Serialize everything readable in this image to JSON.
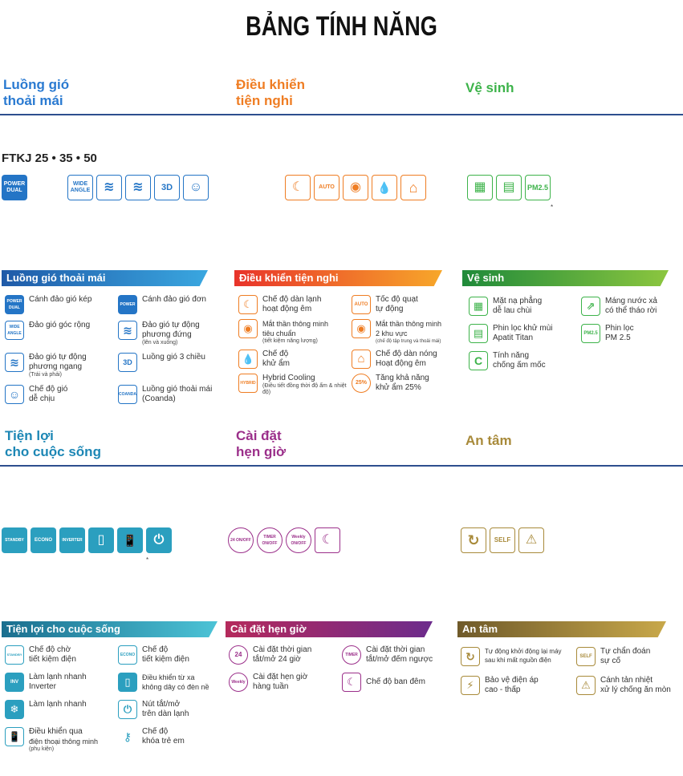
{
  "title": "BẢNG TÍNH NĂNG",
  "categories_top": {
    "air_l1": "Luồng gió",
    "air_l2": "thoải mái",
    "ctrl_l1": "Điều khiển",
    "ctrl_l2": "tiện nghi",
    "clean": "Vệ sinh"
  },
  "model": "FTKJ 25 • 35 • 50",
  "icons_air": [
    {
      "name": "power-dual-icon",
      "text": "POWER DUAL"
    },
    {
      "name": "wide-angle-icon",
      "text": "WIDE ANGLE"
    },
    {
      "name": "vertical-swing-icon",
      "text": "≋"
    },
    {
      "name": "horizontal-swing-icon",
      "text": "≋"
    },
    {
      "name": "3d-airflow-icon",
      "text": "3D"
    },
    {
      "name": "comfort-mode-icon",
      "text": "☺"
    }
  ],
  "icons_ctrl": [
    {
      "name": "cooling-night-icon",
      "text": "☾"
    },
    {
      "name": "fan-auto-icon",
      "text": "AUTO"
    },
    {
      "name": "intelligent-eye-icon",
      "text": "◉"
    },
    {
      "name": "dry-icon",
      "text": "💧"
    },
    {
      "name": "heat-home-icon",
      "text": "⌂"
    }
  ],
  "icons_clean": [
    {
      "name": "flat-panel-icon",
      "text": "▦"
    },
    {
      "name": "titan-filter-icon",
      "text": "▤"
    },
    {
      "name": "pm25-filter-icon",
      "text": "PM2.5"
    }
  ],
  "star": "*",
  "banners": {
    "air": "Luồng gió thoải mái",
    "ctrl": "Điều khiển tiện nghi",
    "clean": "Vệ sinh",
    "life": "Tiện lợi cho cuộc sống",
    "timer": "Cài đặt hẹn giờ",
    "safe": "An tâm"
  },
  "air_features": [
    {
      "icon": "POWER DUAL",
      "name": "power-dual-icon",
      "l1": "Cánh đảo gió kép",
      "l2": "",
      "sub": ""
    },
    {
      "icon": "POWER",
      "name": "power-icon",
      "l1": "Cánh đảo gió đơn",
      "l2": "",
      "sub": ""
    },
    {
      "icon": "WIDE ANGLE",
      "name": "wide-angle-icon",
      "l1": "Đảo gió góc rộng",
      "l2": "",
      "sub": ""
    },
    {
      "icon": "≋",
      "name": "vertical-swing-icon",
      "l1": "Đảo gió tự động",
      "l2": "phương đứng",
      "sub": "(lên và xuống)"
    },
    {
      "icon": "≋",
      "name": "horizontal-swing-icon",
      "l1": "Đảo gió tự động",
      "l2": "phương ngang",
      "sub": "(Trái và phải)"
    },
    {
      "icon": "3D",
      "name": "3d-airflow-icon",
      "l1": "Luồng gió 3 chiều",
      "l2": "",
      "sub": ""
    },
    {
      "icon": "☺",
      "name": "comfort-mode-icon",
      "l1": "Chế độ gió",
      "l2": "dễ chịu",
      "sub": ""
    },
    {
      "icon": "COANDA",
      "name": "coanda-icon",
      "l1": "Luồng gió thoải mái",
      "l2": "(Coanda)",
      "sub": ""
    }
  ],
  "ctrl_features": [
    {
      "icon": "☾",
      "name": "cooling-night-icon",
      "l1": "Chế độ dàn lạnh",
      "l2": "hoạt động êm",
      "sub": ""
    },
    {
      "icon": "AUTO",
      "name": "fan-auto-icon",
      "l1": "Tốc độ quạt",
      "l2": "tự động",
      "sub": ""
    },
    {
      "icon": "◉",
      "name": "intelligent-eye-icon",
      "l1": "Mắt thần thông minh",
      "l2": "tiêu chuẩn",
      "sub": "(tiết kiệm năng lượng)"
    },
    {
      "icon": "◉",
      "name": "intelligent-eye-2-icon",
      "l1": "Mắt thần thông minh",
      "l2": "2 khu vực",
      "sub": "(chế độ tập trung và thoải mái)"
    },
    {
      "icon": "💧",
      "name": "dry-icon",
      "l1": "Chế độ",
      "l2": "khử ẩm",
      "sub": ""
    },
    {
      "icon": "⌂",
      "name": "heat-home-icon",
      "l1": "Chế độ dàn nóng",
      "l2": "Hoạt động êm",
      "sub": ""
    },
    {
      "icon": "HYBRID",
      "name": "hybrid-icon",
      "l1": "Hybrid Cooling",
      "l2": "",
      "sub": "(Điều tiết đồng thời độ ẩm & nhiệt độ)"
    },
    {
      "icon": "25%",
      "name": "humidity-25-icon",
      "l1": "Tăng khả năng",
      "l2": "khử ẩm 25%",
      "sub": ""
    }
  ],
  "clean_features": [
    {
      "icon": "▦",
      "name": "flat-panel-icon",
      "l1": "Mặt nạ phẳng",
      "l2": "dễ lau chùi"
    },
    {
      "icon": "⇗",
      "name": "drain-pan-icon",
      "l1": "Máng nước xả",
      "l2": "có thể tháo rời"
    },
    {
      "icon": "▤",
      "name": "titan-filter-icon",
      "l1": "Phin lọc khử mùi",
      "l2": "Apatit Titan"
    },
    {
      "icon": "PM2.5",
      "name": "pm25-filter-icon",
      "l1": "Phin lọc",
      "l2": "PM 2.5"
    },
    {
      "icon": "C",
      "name": "mold-proof-icon",
      "l1": "Tính năng",
      "l2": "chống ấm mốc"
    }
  ],
  "categories_mid": {
    "life_l1": "Tiện lợi",
    "life_l2": "cho cuộc sống",
    "timer_l1": "Cài đặt",
    "timer_l2": "hẹn giờ",
    "safe": "An tâm"
  },
  "icons_life": [
    {
      "name": "standby-icon",
      "text": "STANDBY"
    },
    {
      "name": "econo-icon",
      "text": "ECONO"
    },
    {
      "name": "inverter-icon",
      "text": "INVERTER"
    },
    {
      "name": "remote-icon",
      "text": "▯"
    },
    {
      "name": "smartphone-icon",
      "text": "📱"
    },
    {
      "name": "onoff-unit-icon",
      "text": "⏻"
    }
  ],
  "icons_timer": [
    {
      "name": "timer-24h-icon",
      "text": "24 ON/OFF"
    },
    {
      "name": "timer-countdown-icon",
      "text": "TIMER ON/OFF"
    },
    {
      "name": "timer-weekly-icon",
      "text": "Weekly ON/OFF"
    },
    {
      "name": "night-mode-icon",
      "text": "☾"
    }
  ],
  "icons_safe": [
    {
      "name": "auto-restart-icon",
      "text": "↻"
    },
    {
      "name": "self-diagnosis-icon",
      "text": "SELF"
    },
    {
      "name": "heat-protect-icon",
      "text": "⚠"
    }
  ],
  "life_features": [
    {
      "icon": "STANDBY",
      "name": "standby-icon",
      "l1": "Chế độ chờ",
      "l2": "tiết kiệm điện",
      "sub": ""
    },
    {
      "icon": "ECONO",
      "name": "econo-icon",
      "l1": "Chế độ",
      "l2": "tiết kiệm điện",
      "sub": ""
    },
    {
      "icon": "INV",
      "name": "inverter-icon",
      "l1": "Làm lạnh nhanh",
      "l2": "Inverter",
      "sub": ""
    },
    {
      "icon": "▯",
      "name": "remote-icon",
      "l1": "Điều khiển từ xa",
      "l2": "không dây có đèn nề",
      "sub": ""
    },
    {
      "icon": "❄",
      "name": "fast-cooling-icon",
      "l1": "Làm lạnh nhanh",
      "l2": "",
      "sub": ""
    },
    {
      "icon": "⏻",
      "name": "onoff-unit-icon",
      "l1": "Nút tắt/mở",
      "l2": "trên dàn lạnh",
      "sub": ""
    },
    {
      "icon": "📱",
      "name": "smartphone-icon",
      "l1": "Điều khiển qua",
      "l2": "điện thoại thông minh",
      "sub": "(phụ kiện)"
    },
    {
      "icon": "⚷",
      "name": "child-lock-icon",
      "l1": "Chế độ",
      "l2": "khóa trẻ em",
      "sub": ""
    }
  ],
  "timer_features": [
    {
      "icon": "24",
      "name": "timer-24h-icon",
      "l1": "Cài đặt thời gian",
      "l2": "tắt/mở 24 giờ"
    },
    {
      "icon": "TIMER",
      "name": "timer-countdown-icon",
      "l1": "Cài đặt thời gian",
      "l2": "tắt/mở đếm ngược"
    },
    {
      "icon": "Weekly",
      "name": "timer-weekly-icon",
      "l1": "Cài đặt hẹn giờ",
      "l2": "hàng tuần"
    },
    {
      "icon": "☾",
      "name": "night-mode-icon",
      "l1": "Chế độ ban đêm",
      "l2": ""
    }
  ],
  "safe_features": [
    {
      "icon": "↻",
      "name": "auto-restart-icon",
      "l1": "Tự động khởi động lại máy",
      "l2": "sau khi mất nguồn điện"
    },
    {
      "icon": "SELF",
      "name": "self-diagnosis-icon",
      "l1": "Tự chẩn đoán",
      "l2": "sự cố"
    },
    {
      "icon": "⚡",
      "name": "voltage-protect-icon",
      "l1": "Bảo vệ điện áp",
      "l2": "cao - thấp"
    },
    {
      "icon": "⚠",
      "name": "heat-protect-icon",
      "l1": "Cánh tản nhiệt",
      "l2": "xử lý chống ăn mòn"
    }
  ]
}
